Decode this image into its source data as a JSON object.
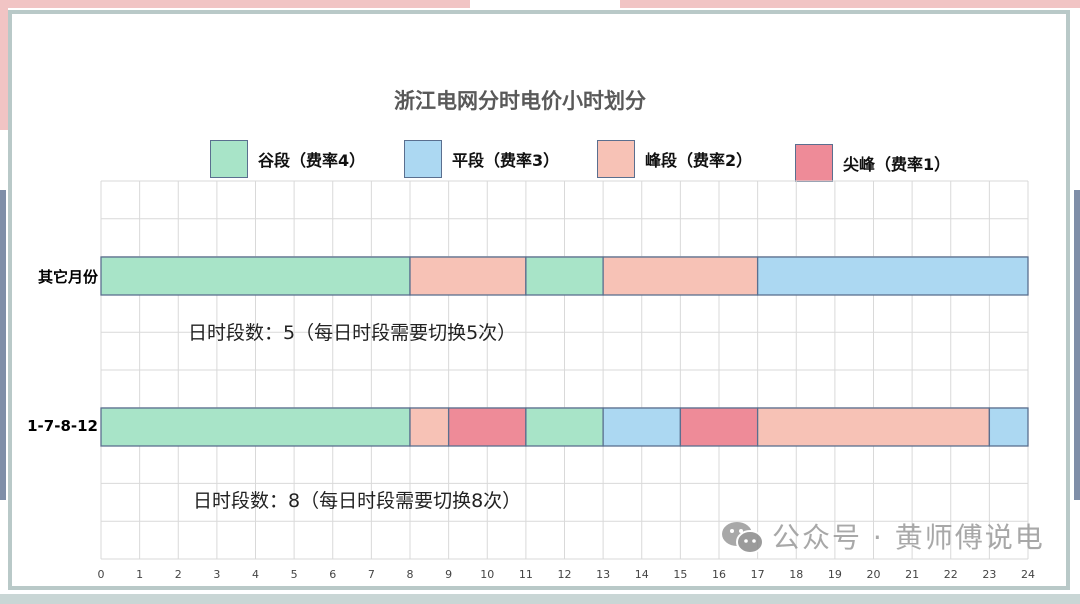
{
  "chart_data": {
    "type": "gantt",
    "title": "浙江电网分时电价小时划分",
    "legend": [
      {
        "key": "valley",
        "label": "谷段（费率4）",
        "color": "#a8e4c8"
      },
      {
        "key": "flat",
        "label": "平段（费率3）",
        "color": "#acd8f2"
      },
      {
        "key": "peak",
        "label": "峰段（费率2）",
        "color": "#f7c2b6"
      },
      {
        "key": "sharp",
        "label": "尖峰（费率1）",
        "color": "#ee8b98"
      }
    ],
    "legend_position": "top",
    "x_ticks": [
      "0",
      "1",
      "2",
      "3",
      "4",
      "5",
      "6",
      "7",
      "8",
      "9",
      "10",
      "11",
      "12",
      "13",
      "14",
      "15",
      "16",
      "17",
      "18",
      "19",
      "20",
      "21",
      "22",
      "23",
      "24"
    ],
    "xlim": [
      0,
      24
    ],
    "grid": true,
    "rows": [
      {
        "label": "其它月份",
        "note": "日时段数：5（每日时段需要切换5次）",
        "segments": [
          {
            "start": 0,
            "end": 8,
            "type": "valley"
          },
          {
            "start": 8,
            "end": 11,
            "type": "peak"
          },
          {
            "start": 11,
            "end": 13,
            "type": "valley"
          },
          {
            "start": 13,
            "end": 17,
            "type": "peak"
          },
          {
            "start": 17,
            "end": 24,
            "type": "flat"
          }
        ]
      },
      {
        "label": "1-7-8-12",
        "note": "日时段数：8（每日时段需要切换8次）",
        "segments": [
          {
            "start": 0,
            "end": 8,
            "type": "valley"
          },
          {
            "start": 8,
            "end": 9,
            "type": "peak"
          },
          {
            "start": 9,
            "end": 11,
            "type": "sharp"
          },
          {
            "start": 11,
            "end": 13,
            "type": "valley"
          },
          {
            "start": 13,
            "end": 15,
            "type": "flat"
          },
          {
            "start": 15,
            "end": 17,
            "type": "sharp"
          },
          {
            "start": 17,
            "end": 23,
            "type": "peak"
          },
          {
            "start": 23,
            "end": 24,
            "type": "flat"
          }
        ]
      }
    ]
  },
  "watermark": "公众号 · 黄师傅说电",
  "watermark_icon": "wechat-icon"
}
